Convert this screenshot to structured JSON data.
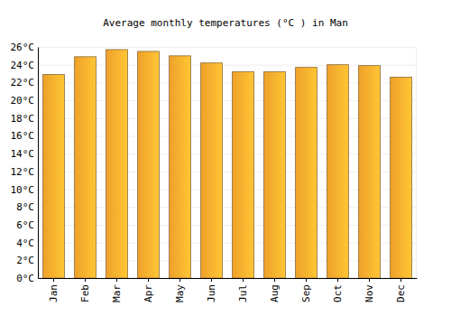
{
  "chart_data": {
    "type": "bar",
    "title": "Average monthly temperatures (°C ) in Man",
    "categories": [
      "Jan",
      "Feb",
      "Mar",
      "Apr",
      "May",
      "Jun",
      "Jul",
      "Aug",
      "Sep",
      "Oct",
      "Nov",
      "Dec"
    ],
    "values": [
      22.9,
      24.9,
      25.7,
      25.5,
      25.0,
      24.2,
      23.2,
      23.2,
      23.7,
      24.0,
      23.9,
      22.6
    ],
    "color": "#fba92c",
    "ylim": [
      0,
      26
    ],
    "yticks": [
      {
        "value": 0,
        "label": "0°C"
      },
      {
        "value": 2,
        "label": "2°C"
      },
      {
        "value": 4,
        "label": "4°C"
      },
      {
        "value": 6,
        "label": "6°C"
      },
      {
        "value": 8,
        "label": "8°C"
      },
      {
        "value": 10,
        "label": "10°C"
      },
      {
        "value": 12,
        "label": "12°C"
      },
      {
        "value": 14,
        "label": "14°C"
      },
      {
        "value": 16,
        "label": "16°C"
      },
      {
        "value": 18,
        "label": "18°C"
      },
      {
        "value": 20,
        "label": "20°C"
      },
      {
        "value": 22,
        "label": "22°C"
      },
      {
        "value": 24,
        "label": "24°C"
      },
      {
        "value": 26,
        "label": "26°C"
      }
    ],
    "grid": true
  }
}
